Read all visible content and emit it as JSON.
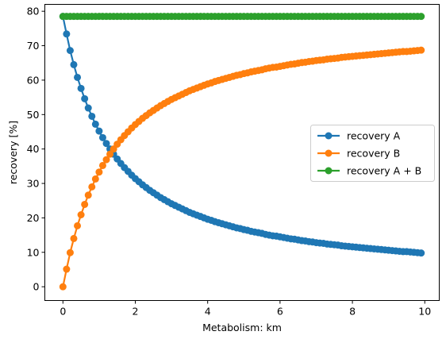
{
  "chart_data": {
    "type": "line",
    "title": "",
    "xlabel": "Metabolism: km",
    "ylabel": "recovery [%]",
    "xlim": [
      -0.5,
      10.4
    ],
    "ylim": [
      -4,
      82
    ],
    "xticks": [
      0,
      2,
      4,
      6,
      8,
      10
    ],
    "xtick_labels": [
      "0",
      "2",
      "4",
      "6",
      "8",
      "10"
    ],
    "yticks": [
      0,
      10,
      20,
      30,
      40,
      50,
      60,
      70,
      80
    ],
    "ytick_labels": [
      "0",
      "10",
      "20",
      "30",
      "40",
      "50",
      "60",
      "70",
      "80"
    ],
    "grid": false,
    "legend_position": "center-right",
    "x_start": 0,
    "x_step": 0.1,
    "x_end": 9.9,
    "series": [
      {
        "name": "recovery A",
        "color": "#1f77b4",
        "values": [
          78.5,
          73.4,
          68.6,
          64.5,
          60.8,
          57.6,
          54.6,
          51.9,
          49.5,
          47.2,
          45.2,
          43.3,
          41.6,
          40.0,
          38.5,
          37.1,
          35.8,
          34.6,
          33.5,
          32.4,
          31.4,
          30.5,
          29.6,
          28.8,
          28.0,
          27.3,
          26.6,
          25.9,
          25.3,
          24.7,
          24.1,
          23.6,
          23.1,
          22.6,
          22.1,
          21.6,
          21.2,
          20.8,
          20.4,
          20.0,
          19.6,
          19.3,
          18.9,
          18.6,
          18.3,
          18.0,
          17.7,
          17.4,
          17.1,
          16.9,
          16.6,
          16.4,
          16.1,
          15.9,
          15.7,
          15.5,
          15.2,
          15.0,
          14.8,
          14.7,
          14.5,
          14.3,
          14.1,
          13.9,
          13.8,
          13.6,
          13.4,
          13.3,
          13.1,
          13.0,
          12.8,
          12.7,
          12.6,
          12.4,
          12.3,
          12.2,
          12.1,
          11.9,
          11.8,
          11.7,
          11.6,
          11.5,
          11.4,
          11.3,
          11.2,
          11.1,
          11.0,
          10.9,
          10.8,
          10.7,
          10.6,
          10.5,
          10.4,
          10.3,
          10.2,
          10.2,
          10.1,
          10.0,
          9.9,
          9.8
        ]
      },
      {
        "name": "recovery B",
        "color": "#ff7f0e",
        "values": [
          0.0,
          5.1,
          9.9,
          14.0,
          17.7,
          20.9,
          23.9,
          26.6,
          29.0,
          31.3,
          33.3,
          35.2,
          36.9,
          38.5,
          40.0,
          41.4,
          42.7,
          43.9,
          45.0,
          46.1,
          47.1,
          48.0,
          48.9,
          49.7,
          50.5,
          51.2,
          51.9,
          52.6,
          53.2,
          53.8,
          54.4,
          54.9,
          55.4,
          55.9,
          56.4,
          56.9,
          57.3,
          57.7,
          58.1,
          58.5,
          58.9,
          59.2,
          59.6,
          59.9,
          60.2,
          60.5,
          60.8,
          61.1,
          61.4,
          61.6,
          61.9,
          62.1,
          62.4,
          62.6,
          62.8,
          63.0,
          63.3,
          63.5,
          63.7,
          63.8,
          64.0,
          64.2,
          64.4,
          64.6,
          64.7,
          64.9,
          65.1,
          65.2,
          65.4,
          65.5,
          65.7,
          65.8,
          65.9,
          66.1,
          66.2,
          66.3,
          66.4,
          66.6,
          66.7,
          66.8,
          66.9,
          67.0,
          67.1,
          67.2,
          67.3,
          67.4,
          67.5,
          67.6,
          67.7,
          67.8,
          67.9,
          68.0,
          68.1,
          68.2,
          68.3,
          68.3,
          68.4,
          68.5,
          68.6,
          68.7
        ]
      },
      {
        "name": "recovery A + B",
        "color": "#2ca02c",
        "values": [
          78.5,
          78.5,
          78.5,
          78.5,
          78.5,
          78.5,
          78.5,
          78.5,
          78.5,
          78.5,
          78.5,
          78.5,
          78.5,
          78.5,
          78.5,
          78.5,
          78.5,
          78.5,
          78.5,
          78.5,
          78.5,
          78.5,
          78.5,
          78.5,
          78.5,
          78.5,
          78.5,
          78.5,
          78.5,
          78.5,
          78.5,
          78.5,
          78.5,
          78.5,
          78.5,
          78.5,
          78.5,
          78.5,
          78.5,
          78.5,
          78.5,
          78.5,
          78.5,
          78.5,
          78.5,
          78.5,
          78.5,
          78.5,
          78.5,
          78.5,
          78.5,
          78.5,
          78.5,
          78.5,
          78.5,
          78.5,
          78.5,
          78.5,
          78.5,
          78.5,
          78.5,
          78.5,
          78.5,
          78.5,
          78.5,
          78.5,
          78.5,
          78.5,
          78.5,
          78.5,
          78.5,
          78.5,
          78.5,
          78.5,
          78.5,
          78.5,
          78.5,
          78.5,
          78.5,
          78.5,
          78.5,
          78.5,
          78.5,
          78.5,
          78.5,
          78.5,
          78.5,
          78.5,
          78.5,
          78.5,
          78.5,
          78.5,
          78.5,
          78.5,
          78.5,
          78.5,
          78.5,
          78.5,
          78.5,
          78.5
        ]
      }
    ]
  }
}
